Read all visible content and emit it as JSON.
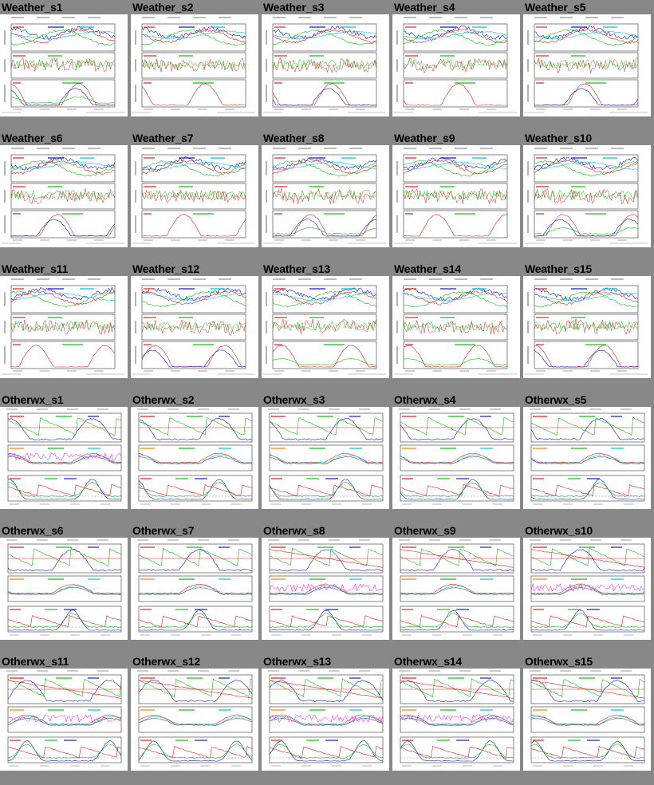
{
  "rows": [
    {
      "items": [
        {
          "title": "Weather_s1",
          "kind": "weather"
        },
        {
          "title": "Weather_s2",
          "kind": "weather"
        },
        {
          "title": "Weather_s3",
          "kind": "weather"
        },
        {
          "title": "Weather_s4",
          "kind": "weather"
        },
        {
          "title": "Weather_s5",
          "kind": "weather"
        }
      ]
    },
    {
      "items": [
        {
          "title": "Weather_s6",
          "kind": "weather"
        },
        {
          "title": "Weather_s7",
          "kind": "weather"
        },
        {
          "title": "Weather_s8",
          "kind": "weather"
        },
        {
          "title": "Weather_s9",
          "kind": "weather"
        },
        {
          "title": "Weather_s10",
          "kind": "weather"
        }
      ]
    },
    {
      "items": [
        {
          "title": "Weather_s11",
          "kind": "weather"
        },
        {
          "title": "Weather_s12",
          "kind": "weather"
        },
        {
          "title": "Weather_s13",
          "kind": "weather"
        },
        {
          "title": "Weather_s14",
          "kind": "weather"
        },
        {
          "title": "Weather_s15",
          "kind": "weather"
        }
      ]
    },
    {
      "items": [
        {
          "title": "Otherwx_s1",
          "kind": "otherwx"
        },
        {
          "title": "Otherwx_s2",
          "kind": "otherwx"
        },
        {
          "title": "Otherwx_s3",
          "kind": "otherwx"
        },
        {
          "title": "Otherwx_s4",
          "kind": "otherwx"
        },
        {
          "title": "Otherwx_s5",
          "kind": "otherwx"
        }
      ]
    },
    {
      "items": [
        {
          "title": "Otherwx_s6",
          "kind": "otherwx"
        },
        {
          "title": "Otherwx_s7",
          "kind": "otherwx"
        },
        {
          "title": "Otherwx_s8",
          "kind": "otherwx"
        },
        {
          "title": "Otherwx_s9",
          "kind": "otherwx"
        },
        {
          "title": "Otherwx_s10",
          "kind": "otherwx"
        }
      ]
    },
    {
      "items": [
        {
          "title": "Otherwx_s11",
          "kind": "otherwx"
        },
        {
          "title": "Otherwx_s12",
          "kind": "otherwx"
        },
        {
          "title": "Otherwx_s13",
          "kind": "otherwx"
        },
        {
          "title": "Otherwx_s14",
          "kind": "otherwx"
        },
        {
          "title": "Otherwx_s15",
          "kind": "otherwx"
        }
      ]
    }
  ],
  "colors": {
    "page_bg": "#888888",
    "series_red": "#e02020",
    "series_green": "#10c010",
    "series_blue": "#1818d0",
    "series_cyan": "#00c0e0",
    "series_magenta": "#ff00ff",
    "series_orange": "#ff8000"
  }
}
